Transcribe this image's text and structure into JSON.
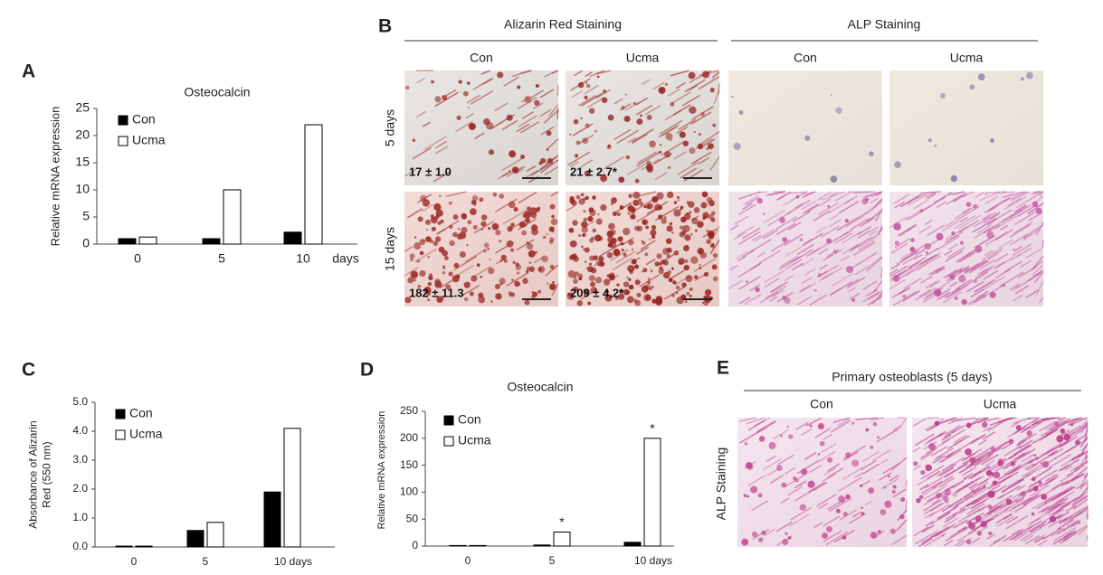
{
  "chart_data": [
    {
      "type": "bar",
      "panel": "A",
      "title": "Osteocalcin",
      "y_label": [
        "Relative mRNA expression"
      ],
      "x_label": "days",
      "categories": [
        "0",
        "5",
        "10"
      ],
      "series": [
        {
          "name": "Con",
          "color": "#000000",
          "values": [
            1,
            1,
            2.2
          ]
        },
        {
          "name": "Ucma",
          "color": "#ffffff",
          "values": [
            1.3,
            10,
            22
          ]
        }
      ],
      "ylim": [
        0,
        25
      ],
      "yticks": [
        0,
        5,
        10,
        15,
        20,
        25
      ]
    },
    {
      "type": "bar",
      "panel": "C",
      "y_label": [
        "Absorbance of Alizarin",
        "Red (550 nm)"
      ],
      "categories": [
        "0",
        "5",
        "10 days"
      ],
      "series": [
        {
          "name": "Con",
          "color": "#000000",
          "values": [
            0.03,
            0.57,
            1.9
          ]
        },
        {
          "name": "Ucma",
          "color": "#ffffff",
          "values": [
            0.03,
            0.85,
            4.1
          ]
        }
      ],
      "ylim": [
        0,
        5
      ],
      "yticks": [
        {
          "value": 0,
          "label": "0.0"
        },
        {
          "value": 1,
          "label": "1.0"
        },
        {
          "value": 2,
          "label": "2.0"
        },
        {
          "value": 3,
          "label": "3.0"
        },
        {
          "value": 4,
          "label": "4.0"
        },
        {
          "value": 5,
          "label": "5.0"
        }
      ]
    },
    {
      "type": "bar",
      "panel": "D",
      "title": "Osteocalcin",
      "y_label": [
        "Relative mRNA expression"
      ],
      "categories": [
        "0",
        "5",
        "10 days"
      ],
      "series": [
        {
          "name": "Con",
          "color": "#000000",
          "values": [
            1,
            2,
            7
          ]
        },
        {
          "name": "Ucma",
          "color": "#ffffff",
          "values": [
            1,
            26,
            200
          ],
          "significance": [
            null,
            "*",
            "*"
          ]
        }
      ],
      "ylim": [
        0,
        250
      ],
      "yticks": [
        0,
        50,
        100,
        150,
        200,
        250
      ]
    }
  ],
  "panel_b": {
    "letter": "B",
    "groups": [
      "Alizarin Red Staining",
      "ALP Staining"
    ],
    "columns": [
      "Con",
      "Ucma",
      "Con",
      "Ucma"
    ],
    "rows": [
      "5 days",
      "15 days"
    ],
    "counts": [
      [
        "17 ± 1.0",
        "21 ± 2.7*"
      ],
      [
        "182 ± 11.3",
        "209 ± 4.2*"
      ]
    ]
  },
  "panel_e": {
    "letter": "E",
    "title": "Primary osteoblasts (5 days)",
    "columns": [
      "Con",
      "Ucma"
    ],
    "row_label": "ALP Staining"
  }
}
